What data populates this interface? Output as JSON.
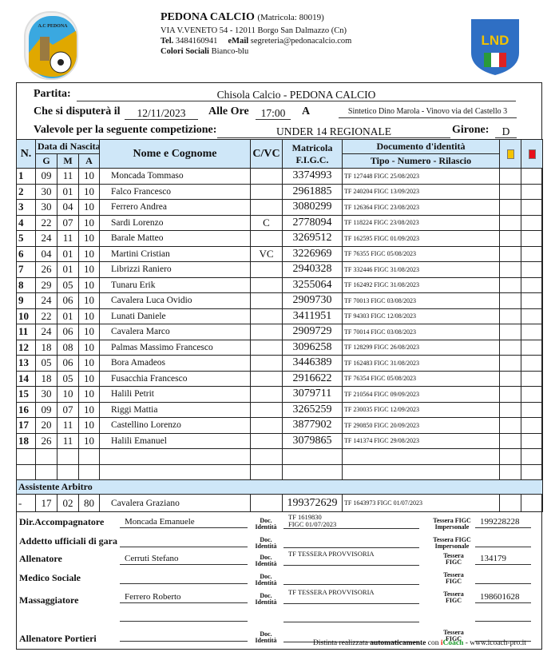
{
  "club": {
    "name": "PEDONA CALCIO",
    "matricola": "(Matricola: 80019)",
    "address": "VIA V.VENETO 54 - 12011 Borgo San Dalmazzo (Cn)",
    "tel_label": "Tel.",
    "tel": "3484160941",
    "email_label": "eMail",
    "email": "segreteria@pedonacalcio.com",
    "colors_label": "Colori Sociali",
    "colors": "Bianco-blu",
    "logo_text": "A.C PEDONA BORGO S. DALMAZZO"
  },
  "federation_logo": {
    "text": "LND"
  },
  "match": {
    "partita_label": "Partita:",
    "partita": "Chisola Calcio - PEDONA CALCIO",
    "date_label": "Che si disputerà il",
    "date": "12/11/2023",
    "time_label": "Alle Ore",
    "time": "17:00",
    "place_label": "A",
    "place": "Sintetico Dino Marola - Vinovo via del Castello 3",
    "competition_label": "Valevole per la seguente competizione:",
    "competition": "UNDER 14 REGIONALE",
    "girone_label": "Girone:",
    "girone": "D"
  },
  "table": {
    "headers": {
      "n": "N.",
      "birth": "Data di Nascita",
      "g": "G",
      "m": "M",
      "a": "A",
      "name": "Nome e Cognome",
      "cvc": "C/VC",
      "matricola1": "Matricola",
      "matricola2": "F.I.G.C.",
      "doc1": "Documento d'identità",
      "doc2": "Tipo - Numero - Rilascio"
    },
    "card_colors": {
      "yellow": "#f5c400",
      "red": "#e8101a"
    },
    "header_bg": "#cfe7f8",
    "rows": [
      {
        "n": "1",
        "g": "09",
        "m": "11",
        "a": "10",
        "name": "Moncada Tommaso",
        "cvc": "",
        "mat": "3374993",
        "doc": "TF   127448   FIGC 25/08/2023"
      },
      {
        "n": "2",
        "g": "30",
        "m": "01",
        "a": "10",
        "name": "Falco Francesco",
        "cvc": "",
        "mat": "2961885",
        "doc": "TF   240204   FIGC 13/09/2023"
      },
      {
        "n": "3",
        "g": "30",
        "m": "04",
        "a": "10",
        "name": "Ferrero Andrea",
        "cvc": "",
        "mat": "3080299",
        "doc": "TF   126364   FIGC 23/08/2023"
      },
      {
        "n": "4",
        "g": "22",
        "m": "07",
        "a": "10",
        "name": "Sardi Lorenzo",
        "cvc": "C",
        "mat": "2778094",
        "doc": "TF   118224   FIGC 23/08/2023"
      },
      {
        "n": "5",
        "g": "24",
        "m": "11",
        "a": "10",
        "name": "Barale Matteo",
        "cvc": "",
        "mat": "3269512",
        "doc": "TF   162595   FIGC 01/09/2023"
      },
      {
        "n": "6",
        "g": "04",
        "m": "01",
        "a": "10",
        "name": "Martini Cristian",
        "cvc": "VC",
        "mat": "3226969",
        "doc": "TF   76355   FIGC 05/08/2023"
      },
      {
        "n": "7",
        "g": "26",
        "m": "01",
        "a": "10",
        "name": "Librizzi Raniero",
        "cvc": "",
        "mat": "2940328",
        "doc": "TF   332446   FIGC 31/08/2023"
      },
      {
        "n": "8",
        "g": "29",
        "m": "05",
        "a": "10",
        "name": "Tunaru Erik",
        "cvc": "",
        "mat": "3255064",
        "doc": "TF   162492   FIGC 31/08/2023"
      },
      {
        "n": "9",
        "g": "24",
        "m": "06",
        "a": "10",
        "name": "Cavalera Luca Ovidio",
        "cvc": "",
        "mat": "2909730",
        "doc": "TF   70013   FIGC 03/08/2023"
      },
      {
        "n": "10",
        "g": "22",
        "m": "01",
        "a": "10",
        "name": "Lunati Daniele",
        "cvc": "",
        "mat": "3411951",
        "doc": "TF   94303   FIGC 12/08/2023"
      },
      {
        "n": "11",
        "g": "24",
        "m": "06",
        "a": "10",
        "name": "Cavalera Marco",
        "cvc": "",
        "mat": "2909729",
        "doc": "TF   70014   FIGC 03/08/2023"
      },
      {
        "n": "12",
        "g": "18",
        "m": "08",
        "a": "10",
        "name": "Palmas Massimo Francesco",
        "cvc": "",
        "mat": "3096258",
        "doc": "TF   128299   FIGC 26/08/2023"
      },
      {
        "n": "13",
        "g": "05",
        "m": "06",
        "a": "10",
        "name": "Bora Amadeos",
        "cvc": "",
        "mat": "3446389",
        "doc": "TF   162483   FIGC 31/08/2023"
      },
      {
        "n": "14",
        "g": "18",
        "m": "05",
        "a": "10",
        "name": "Fusacchia Francesco",
        "cvc": "",
        "mat": "2916622",
        "doc": "TF   76354   FIGC 05/08/2023"
      },
      {
        "n": "15",
        "g": "30",
        "m": "10",
        "a": "10",
        "name": "Halili Petrit",
        "cvc": "",
        "mat": "3079711",
        "doc": "TF   210564   FIGC 09/09/2023"
      },
      {
        "n": "16",
        "g": "09",
        "m": "07",
        "a": "10",
        "name": "Riggi Mattia",
        "cvc": "",
        "mat": "3265259",
        "doc": "TF   230035   FIGC 12/09/2023"
      },
      {
        "n": "17",
        "g": "20",
        "m": "11",
        "a": "10",
        "name": "Castellino Lorenzo",
        "cvc": "",
        "mat": "3877902",
        "doc": "TF   290850   FIGC 20/09/2023"
      },
      {
        "n": "18",
        "g": "26",
        "m": "11",
        "a": "10",
        "name": "Halili Emanuel",
        "cvc": "",
        "mat": "3079865",
        "doc": "TF   141374   FIGC 29/08/2023"
      },
      {
        "n": "",
        "g": "",
        "m": "",
        "a": "",
        "name": "",
        "cvc": "",
        "mat": "",
        "doc": ""
      },
      {
        "n": "",
        "g": "",
        "m": "",
        "a": "",
        "name": "",
        "cvc": "",
        "mat": "",
        "doc": ""
      }
    ],
    "assistant_label": "Assistente Arbitro",
    "assistant": {
      "n": "-",
      "g": "17",
      "m": "02",
      "a": "80",
      "name": "Cavalera Graziano",
      "cvc": "",
      "mat": "199372629",
      "doc": "TF   1643973   FIGC 01/07/2023"
    }
  },
  "staff": {
    "doc_label1": "Doc.",
    "doc_label2": "Identità",
    "tessera_label": "Tessera",
    "figc_label": "FIGC",
    "impersonale_label": "Tessera FIGC",
    "impersonale2": "Impersonale",
    "rows": [
      {
        "label": "Dir.Accompagnatore",
        "name": "Moncada Emanuele",
        "doc": "TF   1619830",
        "doc2": "FIGC 01/07/2023",
        "tessera": "199228228"
      },
      {
        "label": "Addetto ufficiali di gara",
        "name": "",
        "doc": "",
        "doc2": "",
        "tessera": ""
      },
      {
        "label": "Allenatore",
        "name": "Cerruti Stefano",
        "doc": "TF   TESSERA PROVVISORIA",
        "doc2": "",
        "tessera": "134179"
      },
      {
        "label": "Medico Sociale",
        "name": "",
        "doc": "",
        "doc2": "",
        "tessera": ""
      },
      {
        "label": "Massaggiatore",
        "name": "Ferrero Roberto",
        "doc": "TF   TESSERA PROVVISORIA",
        "doc2": "",
        "tessera": "198601628"
      },
      {
        "label": "",
        "name": "",
        "doc": "",
        "doc2": "",
        "tessera": ""
      },
      {
        "label": "Allenatore Portieri",
        "name": "",
        "doc": "",
        "doc2": "",
        "tessera": ""
      }
    ]
  },
  "footer": {
    "prefix": "Distinta realizzata",
    "bold": "automaticamente",
    "mid": "con",
    "brand_i": "i",
    "brand": "Coach",
    "suffix": "- www.icoach-pro.it"
  }
}
